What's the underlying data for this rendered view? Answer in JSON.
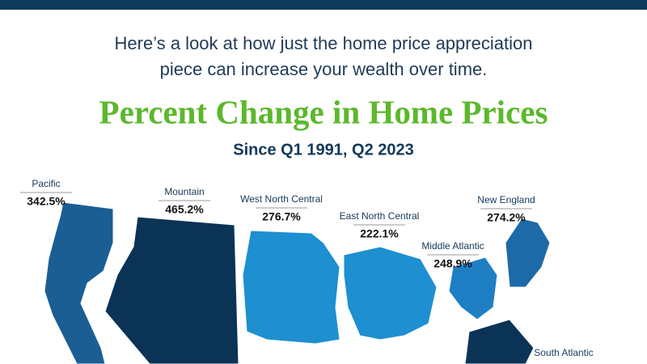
{
  "chart_data": {
    "type": "map",
    "intro": [
      "Here’s a look at how just the home price appreciation",
      "piece can increase your wealth over time."
    ],
    "title": "Percent Change in Home Prices",
    "subtitle": "Since Q1 1991, Q2 2023",
    "categories": [
      "Pacific",
      "Mountain",
      "West North Central",
      "East North Central",
      "Middle Atlantic",
      "New England",
      "South Atlantic"
    ],
    "values": [
      342.5,
      465.2,
      276.7,
      222.1,
      248.9,
      274.2,
      null
    ],
    "value_labels": [
      "342.5%",
      "465.2%",
      "276.7%",
      "222.1%",
      "248.9%",
      "274.2%",
      null
    ],
    "colors": [
      "#1a5e94",
      "#0b3356",
      "#1e8fd0",
      "#1e8fd0",
      "#1f7fc5",
      "#1c6aa8",
      "#0b3356"
    ]
  }
}
